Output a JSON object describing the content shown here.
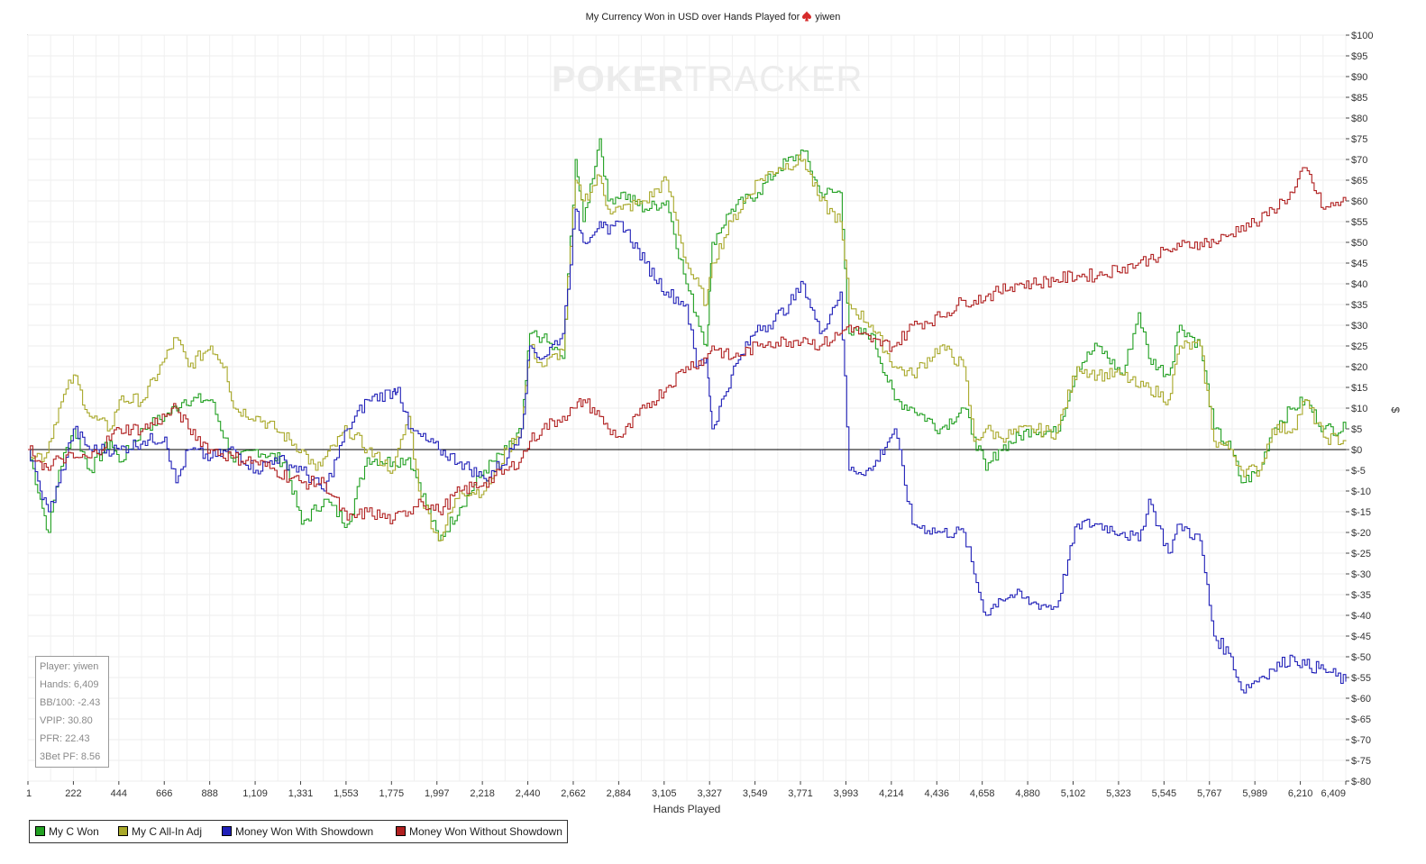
{
  "title": "My Currency Won in USD over Hands Played for",
  "player_name": "yiwen",
  "watermark": {
    "strong": "POKER",
    "light": "TRACKER"
  },
  "stats": [
    "Player: yiwen",
    "Hands: 6,409",
    "BB/100: -2.43",
    "VPIP: 30.80",
    "PFR: 22.43",
    "3Bet PF: 8.56"
  ],
  "legend": [
    {
      "label": "My C Won",
      "color": "#22a022"
    },
    {
      "label": "My C All-In Adj",
      "color": "#a8a829"
    },
    {
      "label": "Money Won With Showdown",
      "color": "#2020b8"
    },
    {
      "label": "Money Won Without Showdown",
      "color": "#b02020"
    }
  ],
  "chart_data": {
    "type": "line",
    "title": "My Currency Won in USD over Hands Played for yiwen",
    "xlabel": "Hands Played",
    "ylabel": "$",
    "xlim": [
      1,
      6409
    ],
    "ylim": [
      -80,
      100
    ],
    "x_ticks": [
      "1",
      "222",
      "444",
      "666",
      "888",
      "1,109",
      "1,331",
      "1,553",
      "1,775",
      "1,997",
      "2,218",
      "2,440",
      "2,662",
      "2,884",
      "3,105",
      "3,327",
      "3,549",
      "3,771",
      "3,993",
      "4,214",
      "4,436",
      "4,658",
      "4,880",
      "5,102",
      "5,323",
      "5,545",
      "5,767",
      "5,989",
      "6,210",
      "6,409"
    ],
    "y_ticks": [
      "$100",
      "$95",
      "$90",
      "$85",
      "$80",
      "$75",
      "$70",
      "$65",
      "$60",
      "$55",
      "$50",
      "$45",
      "$40",
      "$35",
      "$30",
      "$25",
      "$20",
      "$15",
      "$10",
      "$5",
      "$0",
      "$-5",
      "$-10",
      "$-15",
      "$-20",
      "$-25",
      "$-30",
      "$-35",
      "$-40",
      "$-45",
      "$-50",
      "$-55",
      "$-60",
      "$-65",
      "$-70",
      "$-75",
      "$-80"
    ],
    "grid": true,
    "legend_position": "bottom-left",
    "series": [
      {
        "name": "My C Won",
        "color": "#22a022",
        "points": [
          [
            1,
            0
          ],
          [
            60,
            -12
          ],
          [
            100,
            -20
          ],
          [
            150,
            -5
          ],
          [
            222,
            5
          ],
          [
            300,
            -5
          ],
          [
            400,
            2
          ],
          [
            444,
            -3
          ],
          [
            560,
            5
          ],
          [
            666,
            8
          ],
          [
            760,
            12
          ],
          [
            888,
            12
          ],
          [
            1000,
            -3
          ],
          [
            1109,
            0
          ],
          [
            1250,
            -3
          ],
          [
            1331,
            -18
          ],
          [
            1440,
            -12
          ],
          [
            1553,
            -18
          ],
          [
            1650,
            -2
          ],
          [
            1775,
            -3
          ],
          [
            1850,
            -2
          ],
          [
            1900,
            -8
          ],
          [
            1997,
            -22
          ],
          [
            2100,
            -14
          ],
          [
            2218,
            -5
          ],
          [
            2330,
            0
          ],
          [
            2400,
            5
          ],
          [
            2440,
            28
          ],
          [
            2500,
            27
          ],
          [
            2600,
            22
          ],
          [
            2662,
            70
          ],
          [
            2700,
            55
          ],
          [
            2780,
            75
          ],
          [
            2820,
            60
          ],
          [
            2884,
            62
          ],
          [
            3000,
            58
          ],
          [
            3105,
            60
          ],
          [
            3200,
            40
          ],
          [
            3300,
            25
          ],
          [
            3327,
            50
          ],
          [
            3420,
            58
          ],
          [
            3549,
            62
          ],
          [
            3650,
            68
          ],
          [
            3771,
            72
          ],
          [
            3850,
            62
          ],
          [
            3950,
            62
          ],
          [
            3993,
            28
          ],
          [
            4100,
            28
          ],
          [
            4214,
            12
          ],
          [
            4300,
            10
          ],
          [
            4436,
            5
          ],
          [
            4550,
            10
          ],
          [
            4600,
            3
          ],
          [
            4658,
            -5
          ],
          [
            4720,
            0
          ],
          [
            4880,
            5
          ],
          [
            5000,
            4
          ],
          [
            5102,
            20
          ],
          [
            5200,
            25
          ],
          [
            5323,
            18
          ],
          [
            5400,
            33
          ],
          [
            5450,
            22
          ],
          [
            5545,
            18
          ],
          [
            5600,
            30
          ],
          [
            5700,
            25
          ],
          [
            5767,
            5
          ],
          [
            5850,
            0
          ],
          [
            5900,
            -8
          ],
          [
            5989,
            -5
          ],
          [
            6050,
            5
          ],
          [
            6150,
            10
          ],
          [
            6210,
            12
          ],
          [
            6300,
            5
          ],
          [
            6409,
            5
          ]
        ]
      },
      {
        "name": "My C All-In Adj",
        "color": "#a8a829",
        "points": [
          [
            1,
            0
          ],
          [
            80,
            -2
          ],
          [
            150,
            10
          ],
          [
            222,
            18
          ],
          [
            300,
            8
          ],
          [
            400,
            5
          ],
          [
            444,
            12
          ],
          [
            560,
            12
          ],
          [
            666,
            22
          ],
          [
            720,
            27
          ],
          [
            780,
            20
          ],
          [
            888,
            25
          ],
          [
            960,
            20
          ],
          [
            1000,
            10
          ],
          [
            1109,
            8
          ],
          [
            1200,
            5
          ],
          [
            1331,
            0
          ],
          [
            1400,
            -5
          ],
          [
            1553,
            5
          ],
          [
            1650,
            0
          ],
          [
            1775,
            -5
          ],
          [
            1850,
            8
          ],
          [
            1900,
            -10
          ],
          [
            1997,
            -22
          ],
          [
            2100,
            -10
          ],
          [
            2218,
            -10
          ],
          [
            2330,
            0
          ],
          [
            2400,
            5
          ],
          [
            2440,
            25
          ],
          [
            2500,
            20
          ],
          [
            2600,
            24
          ],
          [
            2662,
            65
          ],
          [
            2700,
            60
          ],
          [
            2780,
            66
          ],
          [
            2820,
            58
          ],
          [
            2884,
            58
          ],
          [
            3000,
            60
          ],
          [
            3105,
            65
          ],
          [
            3200,
            45
          ],
          [
            3300,
            35
          ],
          [
            3327,
            45
          ],
          [
            3420,
            55
          ],
          [
            3549,
            65
          ],
          [
            3650,
            68
          ],
          [
            3771,
            70
          ],
          [
            3850,
            60
          ],
          [
            3950,
            55
          ],
          [
            3993,
            35
          ],
          [
            4100,
            30
          ],
          [
            4214,
            20
          ],
          [
            4300,
            18
          ],
          [
            4436,
            25
          ],
          [
            4550,
            20
          ],
          [
            4600,
            2
          ],
          [
            4658,
            5
          ],
          [
            4720,
            3
          ],
          [
            4880,
            5
          ],
          [
            5000,
            4
          ],
          [
            5102,
            20
          ],
          [
            5200,
            18
          ],
          [
            5323,
            18
          ],
          [
            5400,
            15
          ],
          [
            5450,
            15
          ],
          [
            5545,
            12
          ],
          [
            5600,
            25
          ],
          [
            5700,
            25
          ],
          [
            5767,
            2
          ],
          [
            5850,
            0
          ],
          [
            5900,
            -5
          ],
          [
            5989,
            -5
          ],
          [
            6050,
            5
          ],
          [
            6150,
            5
          ],
          [
            6210,
            12
          ],
          [
            6300,
            3
          ],
          [
            6409,
            2
          ]
        ]
      },
      {
        "name": "Money Won With Showdown",
        "color": "#2020b8",
        "points": [
          [
            1,
            0
          ],
          [
            60,
            -10
          ],
          [
            100,
            -15
          ],
          [
            150,
            -8
          ],
          [
            222,
            5
          ],
          [
            300,
            0
          ],
          [
            444,
            0
          ],
          [
            560,
            2
          ],
          [
            666,
            3
          ],
          [
            720,
            -8
          ],
          [
            780,
            0
          ],
          [
            888,
            -2
          ],
          [
            1000,
            0
          ],
          [
            1109,
            -5
          ],
          [
            1200,
            -2
          ],
          [
            1331,
            -5
          ],
          [
            1440,
            -10
          ],
          [
            1553,
            5
          ],
          [
            1650,
            12
          ],
          [
            1775,
            14
          ],
          [
            1800,
            15
          ],
          [
            1850,
            5
          ],
          [
            1997,
            0
          ],
          [
            2100,
            -3
          ],
          [
            2218,
            -7
          ],
          [
            2330,
            -2
          ],
          [
            2400,
            5
          ],
          [
            2440,
            25
          ],
          [
            2500,
            22
          ],
          [
            2600,
            28
          ],
          [
            2662,
            58
          ],
          [
            2700,
            50
          ],
          [
            2780,
            55
          ],
          [
            2820,
            52
          ],
          [
            2884,
            55
          ],
          [
            3000,
            45
          ],
          [
            3105,
            38
          ],
          [
            3200,
            35
          ],
          [
            3250,
            20
          ],
          [
            3300,
            22
          ],
          [
            3327,
            5
          ],
          [
            3420,
            18
          ],
          [
            3549,
            30
          ],
          [
            3600,
            30
          ],
          [
            3700,
            35
          ],
          [
            3771,
            40
          ],
          [
            3850,
            28
          ],
          [
            3950,
            38
          ],
          [
            3993,
            -5
          ],
          [
            4100,
            -5
          ],
          [
            4214,
            5
          ],
          [
            4300,
            -18
          ],
          [
            4436,
            -20
          ],
          [
            4550,
            -20
          ],
          [
            4600,
            -30
          ],
          [
            4658,
            -40
          ],
          [
            4720,
            -36
          ],
          [
            4800,
            -35
          ],
          [
            4880,
            -37
          ],
          [
            5000,
            -38
          ],
          [
            5102,
            -18
          ],
          [
            5200,
            -18
          ],
          [
            5323,
            -20
          ],
          [
            5400,
            -22
          ],
          [
            5450,
            -12
          ],
          [
            5545,
            -25
          ],
          [
            5600,
            -18
          ],
          [
            5700,
            -22
          ],
          [
            5767,
            -45
          ],
          [
            5850,
            -50
          ],
          [
            5900,
            -58
          ],
          [
            5989,
            -55
          ],
          [
            6050,
            -53
          ],
          [
            6150,
            -50
          ],
          [
            6210,
            -52
          ],
          [
            6300,
            -53
          ],
          [
            6409,
            -56
          ]
        ]
      },
      {
        "name": "Money Won Without Showdown",
        "color": "#b02020",
        "points": [
          [
            1,
            0
          ],
          [
            60,
            -3
          ],
          [
            100,
            -5
          ],
          [
            150,
            -2
          ],
          [
            222,
            -2
          ],
          [
            300,
            -2
          ],
          [
            444,
            5
          ],
          [
            560,
            5
          ],
          [
            666,
            8
          ],
          [
            720,
            10
          ],
          [
            780,
            5
          ],
          [
            888,
            0
          ],
          [
            1000,
            -2
          ],
          [
            1109,
            -3
          ],
          [
            1200,
            -5
          ],
          [
            1331,
            -8
          ],
          [
            1440,
            -8
          ],
          [
            1553,
            -17
          ],
          [
            1650,
            -15
          ],
          [
            1775,
            -17
          ],
          [
            1850,
            -15
          ],
          [
            1900,
            -12
          ],
          [
            1997,
            -15
          ],
          [
            2100,
            -10
          ],
          [
            2218,
            -8
          ],
          [
            2330,
            -5
          ],
          [
            2400,
            -2
          ],
          [
            2440,
            2
          ],
          [
            2500,
            5
          ],
          [
            2600,
            8
          ],
          [
            2662,
            10
          ],
          [
            2700,
            12
          ],
          [
            2780,
            8
          ],
          [
            2820,
            5
          ],
          [
            2884,
            3
          ],
          [
            3000,
            10
          ],
          [
            3105,
            15
          ],
          [
            3200,
            20
          ],
          [
            3300,
            22
          ],
          [
            3327,
            25
          ],
          [
            3420,
            22
          ],
          [
            3549,
            25
          ],
          [
            3600,
            26
          ],
          [
            3700,
            26
          ],
          [
            3771,
            27
          ],
          [
            3850,
            25
          ],
          [
            3950,
            28
          ],
          [
            3993,
            30
          ],
          [
            4100,
            26
          ],
          [
            4214,
            25
          ],
          [
            4300,
            30
          ],
          [
            4436,
            32
          ],
          [
            4550,
            36
          ],
          [
            4600,
            36
          ],
          [
            4658,
            37
          ],
          [
            4720,
            38
          ],
          [
            4800,
            40
          ],
          [
            4880,
            40
          ],
          [
            5000,
            41
          ],
          [
            5102,
            42
          ],
          [
            5200,
            42
          ],
          [
            5323,
            44
          ],
          [
            5400,
            45
          ],
          [
            5450,
            46
          ],
          [
            5545,
            48
          ],
          [
            5600,
            49
          ],
          [
            5700,
            50
          ],
          [
            5767,
            50
          ],
          [
            5850,
            52
          ],
          [
            5900,
            54
          ],
          [
            5989,
            55
          ],
          [
            6050,
            58
          ],
          [
            6150,
            62
          ],
          [
            6210,
            68
          ],
          [
            6300,
            58
          ],
          [
            6409,
            60
          ]
        ]
      }
    ]
  }
}
